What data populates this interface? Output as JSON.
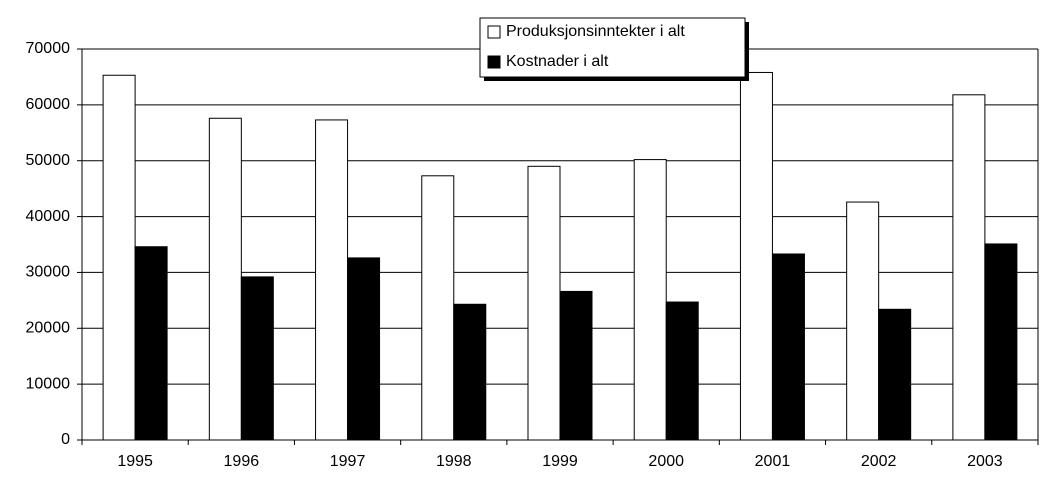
{
  "chart_data": {
    "type": "bar",
    "categories": [
      "1995",
      "1996",
      "1997",
      "1998",
      "1999",
      "2000",
      "2001",
      "2002",
      "2003"
    ],
    "series": [
      {
        "name": "Produksjonsinntekter i alt",
        "color": "#ffffff",
        "values": [
          65300,
          57600,
          57300,
          47300,
          49000,
          50200,
          65800,
          42600,
          61800
        ]
      },
      {
        "name": "Kostnader i alt",
        "color": "#000000",
        "values": [
          34600,
          29200,
          32600,
          24300,
          26600,
          24700,
          33300,
          23400,
          35100
        ]
      }
    ],
    "ylim": [
      0,
      70000
    ],
    "yticks": [
      0,
      10000,
      20000,
      30000,
      40000,
      50000,
      60000,
      70000
    ],
    "grid": true,
    "legend": "top"
  }
}
